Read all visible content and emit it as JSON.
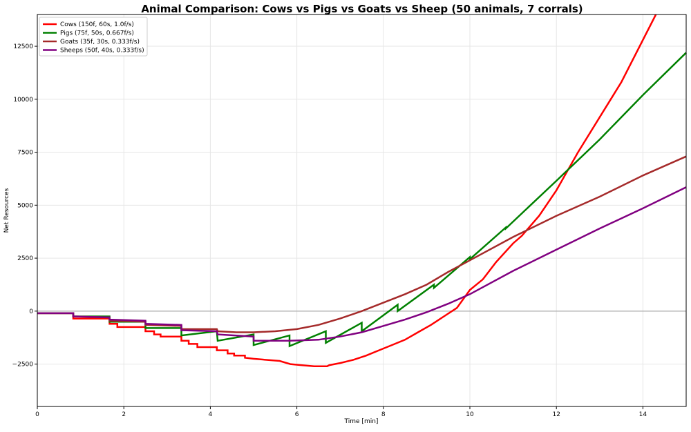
{
  "chart_data": {
    "type": "line",
    "title": "Animal Comparison: Cows vs Pigs vs Goats vs Sheep (50 animals, 7 corrals)",
    "xlabel": "Time [min]",
    "ylabel": "Net Resources",
    "xlim": [
      0,
      15
    ],
    "ylim": [
      -4500,
      14000
    ],
    "xticks": [
      0,
      2,
      4,
      6,
      8,
      10,
      12,
      14
    ],
    "yticks": [
      -2500,
      0,
      2500,
      5000,
      7500,
      10000,
      12500
    ],
    "ytick_labels": [
      "−2500",
      "0",
      "2500",
      "5000",
      "7500",
      "10000",
      "12500"
    ],
    "grid": true,
    "legend_position": "top-left",
    "zero_line": true,
    "series": [
      {
        "name": "Cows (150f, 60s, 1.0f/s)",
        "color": "#ff0000",
        "points": [
          [
            0,
            -100
          ],
          [
            0.83,
            -100
          ],
          [
            0.83,
            -350
          ],
          [
            1.67,
            -350
          ],
          [
            1.67,
            -600
          ],
          [
            1.85,
            -600
          ],
          [
            1.85,
            -750
          ],
          [
            2.5,
            -750
          ],
          [
            2.5,
            -950
          ],
          [
            2.7,
            -950
          ],
          [
            2.7,
            -1100
          ],
          [
            2.85,
            -1100
          ],
          [
            2.85,
            -1200
          ],
          [
            3.33,
            -1200
          ],
          [
            3.33,
            -1400
          ],
          [
            3.5,
            -1400
          ],
          [
            3.5,
            -1550
          ],
          [
            3.7,
            -1550
          ],
          [
            3.7,
            -1700
          ],
          [
            4.15,
            -1700
          ],
          [
            4.15,
            -1850
          ],
          [
            4.4,
            -1850
          ],
          [
            4.4,
            -2000
          ],
          [
            4.55,
            -2000
          ],
          [
            4.55,
            -2100
          ],
          [
            4.8,
            -2100
          ],
          [
            4.8,
            -2200
          ],
          [
            5.0,
            -2250
          ],
          [
            5.3,
            -2300
          ],
          [
            5.6,
            -2350
          ],
          [
            5.85,
            -2500
          ],
          [
            6.1,
            -2550
          ],
          [
            6.4,
            -2600
          ],
          [
            6.7,
            -2600
          ],
          [
            6.75,
            -2550
          ],
          [
            7.0,
            -2450
          ],
          [
            7.3,
            -2300
          ],
          [
            7.6,
            -2100
          ],
          [
            7.9,
            -1850
          ],
          [
            8.2,
            -1600
          ],
          [
            8.5,
            -1350
          ],
          [
            8.8,
            -1000
          ],
          [
            9.1,
            -650
          ],
          [
            9.4,
            -250
          ],
          [
            9.7,
            150
          ],
          [
            10.0,
            1000
          ],
          [
            10.3,
            1500
          ],
          [
            10.6,
            2300
          ],
          [
            11.0,
            3200
          ],
          [
            11.2,
            3550
          ],
          [
            11.6,
            4500
          ],
          [
            12.0,
            5700
          ],
          [
            12.5,
            7500
          ],
          [
            13.5,
            10800
          ],
          [
            14.3,
            14000
          ]
        ]
      },
      {
        "name": "Pigs (75f, 50s, 0.667f/s)",
        "color": "#008000",
        "points": [
          [
            0,
            -100
          ],
          [
            0.83,
            -100
          ],
          [
            0.83,
            -250
          ],
          [
            1.67,
            -250
          ],
          [
            1.67,
            -500
          ],
          [
            2.5,
            -500
          ],
          [
            2.5,
            -800
          ],
          [
            3.33,
            -800
          ],
          [
            3.33,
            -1150
          ],
          [
            4.15,
            -950
          ],
          [
            4.17,
            -1400
          ],
          [
            5.0,
            -1100
          ],
          [
            5.0,
            -1600
          ],
          [
            5.83,
            -1150
          ],
          [
            5.83,
            -1650
          ],
          [
            6.67,
            -950
          ],
          [
            6.67,
            -1500
          ],
          [
            7.5,
            -550
          ],
          [
            7.5,
            -950
          ],
          [
            8.33,
            300
          ],
          [
            8.33,
            0
          ],
          [
            9.17,
            1250
          ],
          [
            9.17,
            1100
          ],
          [
            10.0,
            2550
          ],
          [
            10.0,
            2450
          ],
          [
            10.83,
            3950
          ],
          [
            10.83,
            3900
          ],
          [
            12.0,
            6150
          ],
          [
            13.0,
            8100
          ],
          [
            14.0,
            10200
          ],
          [
            15.0,
            12200
          ]
        ]
      },
      {
        "name": "Goats (35f, 30s, 0.333f/s)",
        "color": "#a52a2a",
        "points": [
          [
            0,
            -100
          ],
          [
            0.83,
            -100
          ],
          [
            0.83,
            -250
          ],
          [
            1.67,
            -300
          ],
          [
            1.67,
            -450
          ],
          [
            2.5,
            -500
          ],
          [
            2.5,
            -650
          ],
          [
            3.33,
            -700
          ],
          [
            3.33,
            -850
          ],
          [
            4.15,
            -850
          ],
          [
            4.17,
            -950
          ],
          [
            4.6,
            -1000
          ],
          [
            5.0,
            -1000
          ],
          [
            5.5,
            -950
          ],
          [
            6.0,
            -850
          ],
          [
            6.5,
            -650
          ],
          [
            7.0,
            -350
          ],
          [
            7.5,
            0
          ],
          [
            8.0,
            400
          ],
          [
            8.5,
            800
          ],
          [
            9.0,
            1250
          ],
          [
            9.5,
            1850
          ],
          [
            10.0,
            2400
          ],
          [
            11.0,
            3500
          ],
          [
            12.0,
            4500
          ],
          [
            13.0,
            5400
          ],
          [
            14.0,
            6400
          ],
          [
            15.0,
            7300
          ]
        ]
      },
      {
        "name": "Sheeps (50f, 40s, 0.333f/s)",
        "color": "#800080",
        "points": [
          [
            0,
            -100
          ],
          [
            0.83,
            -100
          ],
          [
            0.83,
            -250
          ],
          [
            1.67,
            -300
          ],
          [
            1.67,
            -400
          ],
          [
            2.5,
            -450
          ],
          [
            2.5,
            -600
          ],
          [
            3.33,
            -650
          ],
          [
            3.33,
            -900
          ],
          [
            4.15,
            -950
          ],
          [
            4.17,
            -1100
          ],
          [
            5.0,
            -1200
          ],
          [
            5.0,
            -1400
          ],
          [
            5.83,
            -1400
          ],
          [
            6.5,
            -1350
          ],
          [
            7.0,
            -1200
          ],
          [
            7.5,
            -1000
          ],
          [
            8.0,
            -700
          ],
          [
            8.5,
            -400
          ],
          [
            9.0,
            -50
          ],
          [
            9.5,
            350
          ],
          [
            10.0,
            800
          ],
          [
            11.0,
            1900
          ],
          [
            12.0,
            2900
          ],
          [
            13.0,
            3900
          ],
          [
            14.0,
            4850
          ],
          [
            15.0,
            5850
          ]
        ]
      }
    ]
  }
}
